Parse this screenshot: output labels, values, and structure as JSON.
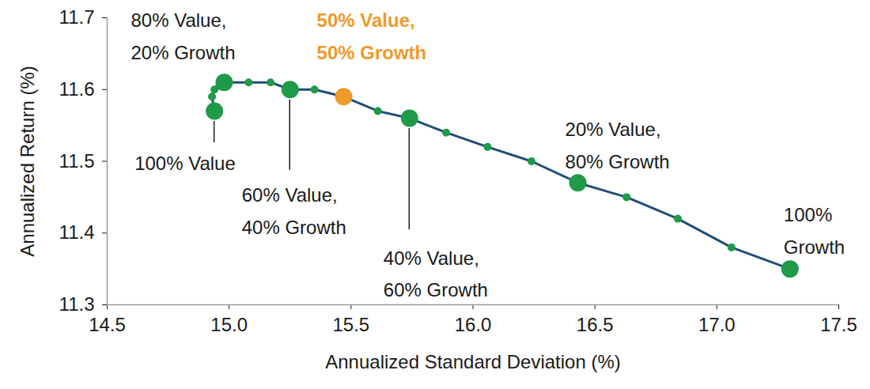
{
  "chart_data": {
    "type": "line",
    "x_label": "Annualized Standard Deviation (%)",
    "y_label": "Annualized Return (%)",
    "x": [
      14.94,
      14.93,
      14.94,
      14.96,
      14.98,
      15.0,
      15.08,
      15.17,
      15.25,
      15.35,
      15.47,
      15.61,
      15.74,
      15.89,
      16.06,
      16.24,
      16.43,
      16.63,
      16.84,
      17.06,
      17.3
    ],
    "values": [
      11.57,
      11.59,
      11.6,
      11.605,
      11.61,
      11.61,
      11.61,
      11.61,
      11.6,
      11.6,
      11.59,
      11.57,
      11.56,
      11.54,
      11.52,
      11.5,
      11.47,
      11.45,
      11.42,
      11.38,
      11.35
    ],
    "point_labels": [
      [
        "100% Value"
      ],
      null,
      null,
      null,
      [
        "80% Value,",
        "20% Growth"
      ],
      null,
      null,
      null,
      [
        "60% Value,",
        "40% Growth"
      ],
      null,
      [
        "50% Value,",
        "50% Growth"
      ],
      null,
      [
        "40% Value,",
        "60% Growth"
      ],
      null,
      null,
      null,
      [
        "20% Value,",
        "80% Growth"
      ],
      null,
      null,
      null,
      [
        "100%",
        "Growth"
      ]
    ],
    "color": "#1f4e79",
    "colors": [
      "#1e9a48",
      "#1e9a48",
      "#1e9a48",
      "#1e9a48",
      "#1e9a48",
      "#1e9a48",
      "#1e9a48",
      "#1e9a48",
      "#1e9a48",
      "#1e9a48",
      "#f09a2a",
      "#1e9a48",
      "#1e9a48",
      "#1e9a48",
      "#1e9a48",
      "#1e9a48",
      "#1e9a48",
      "#1e9a48",
      "#1e9a48",
      "#1e9a48",
      "#1e9a48"
    ],
    "marker": "circle",
    "xlim": [
      14.5,
      17.5
    ],
    "xticks": [
      14.5,
      {
        "value": 15,
        "label": "15.0"
      },
      15.5,
      {
        "value": 16,
        "label": "16.0"
      },
      16.5,
      {
        "value": 17,
        "label": "17.0"
      },
      17.5
    ],
    "ylim": [
      11.3,
      11.7
    ],
    "yticks": [
      11.3,
      11.4,
      11.5,
      11.6,
      11.7
    ],
    "grid": false
  }
}
